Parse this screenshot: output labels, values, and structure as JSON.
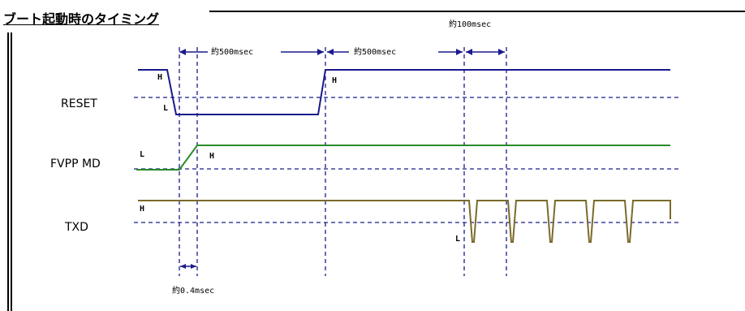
{
  "title": "ブート起動時のタイミング",
  "colors": {
    "reset_wave": "#1a1a8c",
    "fvpp_wave": "#2a8a2a",
    "txd_wave": "#7a6a2a",
    "threshold": "#1a1a8c",
    "marker": "#1a1a8c",
    "arrow": "#1a1a8c"
  },
  "signals": {
    "reset": {
      "name": "RESET",
      "high_label": "H",
      "low_label": "L"
    },
    "fvpp": {
      "name": "FVPP MD",
      "low_label": "L",
      "high_label": "H"
    },
    "txd": {
      "name": "TXD",
      "high_label": "H",
      "low_label": "L"
    }
  },
  "annotations": {
    "interval1": "約500msec",
    "interval2": "約500msec",
    "interval3": "約100msec",
    "interval4": "約0.4msec"
  }
}
